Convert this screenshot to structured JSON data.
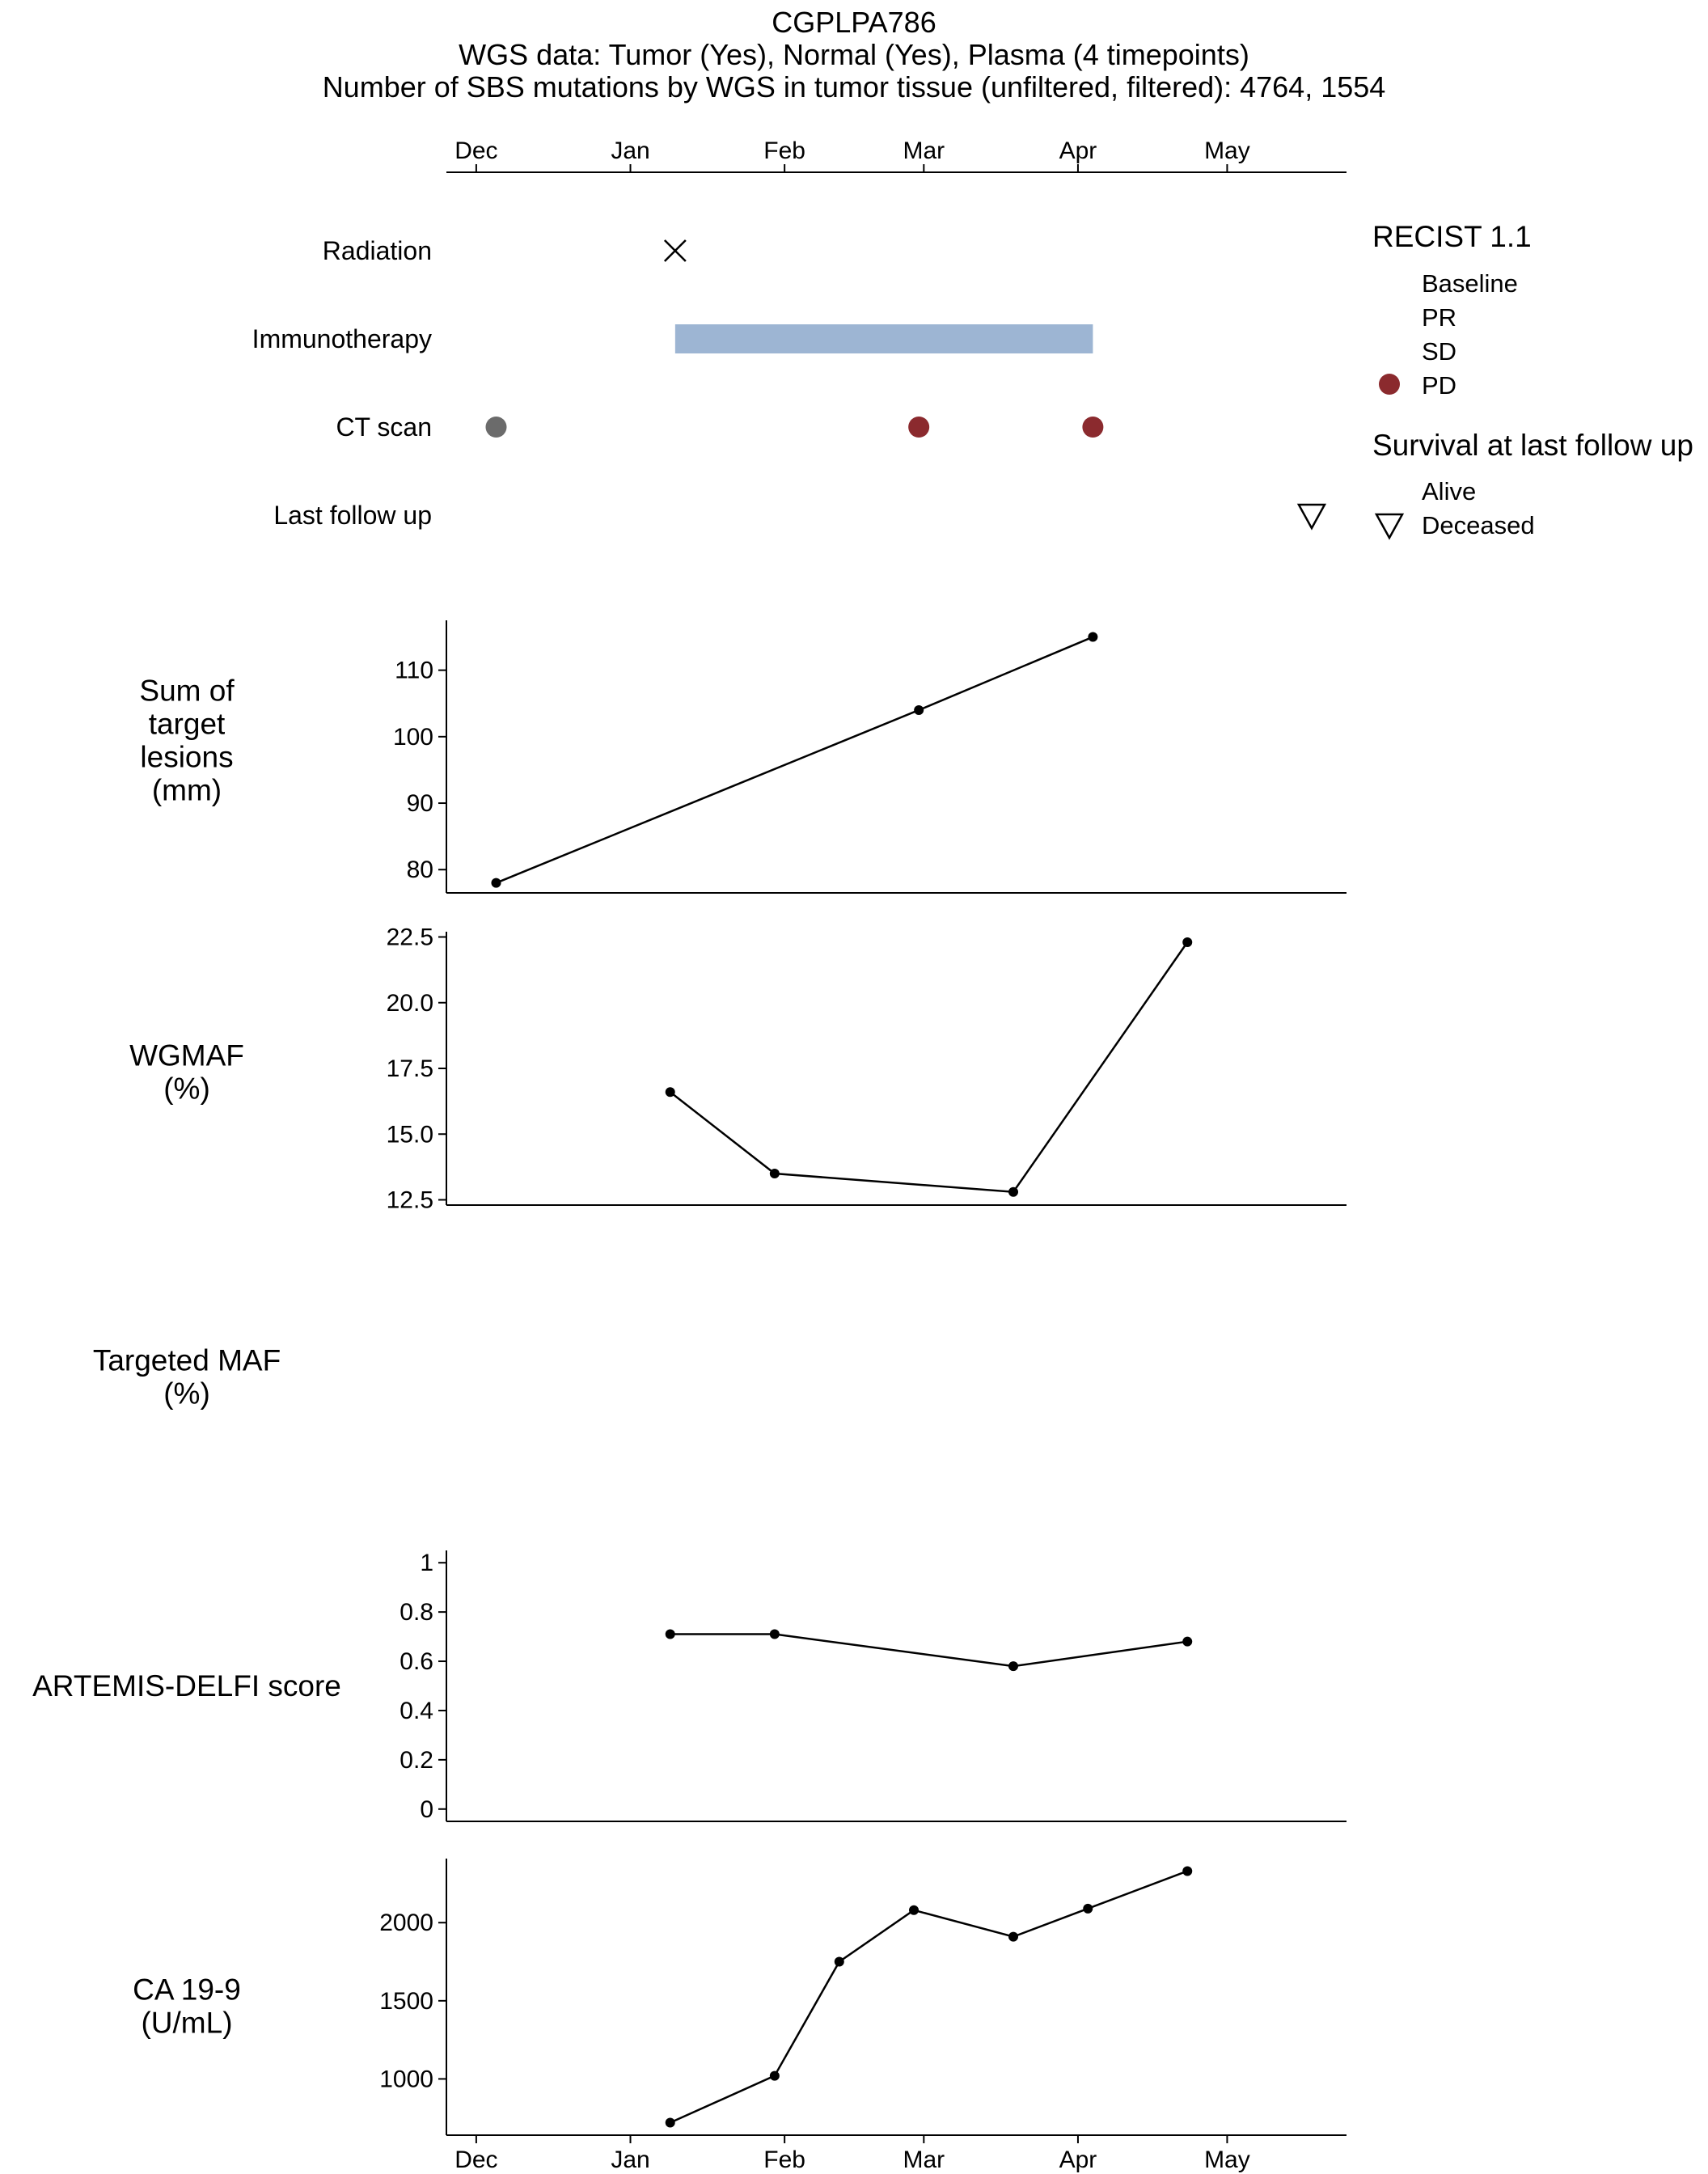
{
  "header": {
    "title": "CGPLPA786",
    "subtitle1": "WGS data: Tumor (Yes), Normal (Yes), Plasma (4 timepoints)",
    "subtitle2": "Number of SBS mutations by WGS in tumor tissue (unfiltered, filtered): 4764, 1554"
  },
  "chart_data": {
    "type": "timeline-line",
    "x_axis": {
      "range_days": [
        -6,
        175
      ],
      "month_ticks": [
        {
          "label": "Dec",
          "day": 0
        },
        {
          "label": "Jan",
          "day": 31
        },
        {
          "label": "Feb",
          "day": 62
        },
        {
          "label": "Mar",
          "day": 90
        },
        {
          "label": "Apr",
          "day": 121
        },
        {
          "label": "May",
          "day": 151
        }
      ]
    },
    "timeline": {
      "rows": [
        {
          "label": "Radiation"
        },
        {
          "label": "Immunotherapy"
        },
        {
          "label": "CT scan"
        },
        {
          "label": "Last follow up"
        }
      ],
      "radiation": [
        {
          "day": 40
        }
      ],
      "immunotherapy": {
        "start_day": 40,
        "end_day": 124,
        "color": "#9db5d3"
      },
      "ct_scans": [
        {
          "day": 4,
          "response": "Baseline",
          "color": "#6b6b6b"
        },
        {
          "day": 89,
          "response": "PD",
          "color": "#8b2a2e"
        },
        {
          "day": 124,
          "response": "PD",
          "color": "#8b2a2e"
        }
      ],
      "last_follow_up": {
        "day": 168,
        "status": "Deceased"
      }
    },
    "legend": {
      "recist_title": "RECIST 1.1",
      "recist_items": [
        {
          "label": "Baseline",
          "color": null
        },
        {
          "label": "PR",
          "color": null
        },
        {
          "label": "SD",
          "color": null
        },
        {
          "label": "PD",
          "color": "#8b2a2e"
        }
      ],
      "survival_title": "Survival at last follow up",
      "survival_items": [
        {
          "label": "Alive",
          "marker": null
        },
        {
          "label": "Deceased",
          "marker": "triangle-down"
        }
      ]
    },
    "panels": [
      {
        "id": "sum",
        "label_lines": [
          "Sum of",
          "target",
          "lesions",
          "(mm)"
        ],
        "ylim": [
          76.5,
          117.5
        ],
        "ticks": [
          {
            "value": 80,
            "label": "80"
          },
          {
            "value": 90,
            "label": "90"
          },
          {
            "value": 100,
            "label": "100"
          },
          {
            "value": 110,
            "label": "110"
          }
        ],
        "points": [
          {
            "day": 4,
            "value": 78
          },
          {
            "day": 89,
            "value": 104
          },
          {
            "day": 124,
            "value": 115
          }
        ]
      },
      {
        "id": "wgmaf",
        "label_lines": [
          "WGMAF",
          "(%)"
        ],
        "ylim": [
          12.3,
          22.7
        ],
        "ticks": [
          {
            "value": 12.5,
            "label": "12.5"
          },
          {
            "value": 15,
            "label": "15.0"
          },
          {
            "value": 17.5,
            "label": "17.5"
          },
          {
            "value": 20,
            "label": "20.0"
          },
          {
            "value": 22.5,
            "label": "22.5"
          }
        ],
        "points": [
          {
            "day": 39,
            "value": 16.6
          },
          {
            "day": 60,
            "value": 13.5
          },
          {
            "day": 108,
            "value": 12.8
          },
          {
            "day": 143,
            "value": 22.3
          }
        ]
      },
      {
        "id": "targeted",
        "label_lines": [
          "Targeted MAF",
          "(%)"
        ],
        "ticks": [],
        "points": []
      },
      {
        "id": "artemis",
        "label_lines": [
          "ARTEMIS-DELFI score"
        ],
        "ylim": [
          -0.05,
          1.05
        ],
        "ticks": [
          {
            "value": 0,
            "label": "0"
          },
          {
            "value": 0.2,
            "label": "0.2"
          },
          {
            "value": 0.4,
            "label": "0.4"
          },
          {
            "value": 0.6,
            "label": "0.6"
          },
          {
            "value": 0.8,
            "label": "0.8"
          },
          {
            "value": 1,
            "label": "1"
          }
        ],
        "points": [
          {
            "day": 39,
            "value": 0.71
          },
          {
            "day": 60,
            "value": 0.71
          },
          {
            "day": 108,
            "value": 0.58
          },
          {
            "day": 143,
            "value": 0.68
          }
        ]
      },
      {
        "id": "ca199",
        "label_lines": [
          "CA 19-9",
          "(U/mL)"
        ],
        "ylim": [
          640,
          2410
        ],
        "ticks": [
          {
            "value": 1000,
            "label": "1000"
          },
          {
            "value": 1500,
            "label": "1500"
          },
          {
            "value": 2000,
            "label": "2000"
          }
        ],
        "points": [
          {
            "day": 39,
            "value": 720
          },
          {
            "day": 60,
            "value": 1020
          },
          {
            "day": 73,
            "value": 1750
          },
          {
            "day": 88,
            "value": 2080
          },
          {
            "day": 108,
            "value": 1910
          },
          {
            "day": 123,
            "value": 2090
          },
          {
            "day": 143,
            "value": 2330
          }
        ]
      }
    ]
  }
}
